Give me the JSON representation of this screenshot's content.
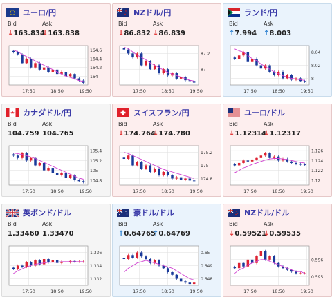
{
  "cards": [
    {
      "pair": "ユーロ/円",
      "flag": "EU",
      "trend": "down",
      "bid": "163.834",
      "ask": "163.838",
      "bid_arrow": "↓",
      "ask_arrow": "↓",
      "labels": {
        "bid": "Bid",
        "ask": "Ask"
      },
      "chart_data": {
        "type": "candlestick",
        "x_ticks": [
          "17:50",
          "18:50",
          "19:50"
        ],
        "y_ticks": [
          "164.6",
          "164.4",
          "164.2",
          "164"
        ],
        "ylim": [
          163.8,
          164.7
        ],
        "close": [
          164.55,
          164.5,
          164.3,
          164.4,
          164.2,
          164.3,
          164.15,
          164.2,
          164.1,
          164.15,
          164.05,
          164.1,
          164.0,
          164.05,
          163.95,
          163.9,
          163.85
        ],
        "ma": [
          164.6,
          164.56,
          164.5,
          164.45,
          164.4,
          164.35,
          164.3,
          164.25,
          164.2,
          164.15,
          164.1,
          164.05,
          164.0,
          163.97,
          163.94,
          163.9,
          163.88
        ]
      }
    },
    {
      "pair": "NZドル/円",
      "flag": "NZ",
      "trend": "down",
      "bid": "86.832",
      "ask": "86.839",
      "bid_arrow": "↓",
      "ask_arrow": "↓",
      "labels": {
        "bid": "Bid",
        "ask": "Ask"
      },
      "chart_data": {
        "type": "candlestick",
        "x_ticks": [
          "17:50",
          "18:50",
          "19:50"
        ],
        "y_ticks": [
          "87.2",
          "87"
        ],
        "ylim": [
          86.8,
          87.3
        ],
        "close": [
          87.25,
          87.2,
          87.15,
          87.2,
          87.05,
          87.1,
          87.0,
          87.05,
          86.95,
          87.0,
          86.92,
          86.95,
          86.88,
          86.9,
          86.86,
          86.85,
          86.83
        ],
        "ma": [
          87.28,
          87.26,
          87.22,
          87.18,
          87.15,
          87.12,
          87.08,
          87.05,
          87.02,
          86.99,
          86.96,
          86.94,
          86.92,
          86.9,
          86.88,
          86.86,
          86.85
        ]
      }
    },
    {
      "pair": "ランド/円",
      "flag": "ZA",
      "trend": "up",
      "bid": "7.994",
      "ask": "8.003",
      "bid_arrow": "↑",
      "ask_arrow": "↑",
      "labels": {
        "bid": "Bid",
        "ask": "Ask"
      },
      "chart_data": {
        "type": "candlestick",
        "x_ticks": [
          "17:50",
          "18:50",
          "19:50"
        ],
        "y_ticks": [
          "8.04",
          "8.02",
          "8"
        ],
        "ylim": [
          7.99,
          8.05
        ],
        "close": [
          8.03,
          8.035,
          8.04,
          8.025,
          8.03,
          8.02,
          8.015,
          8.02,
          8.01,
          8.005,
          8.01,
          8.0,
          8.005,
          7.998,
          8.0,
          7.996,
          7.995
        ],
        "ma": [
          8.045,
          8.042,
          8.04,
          8.035,
          8.03,
          8.027,
          8.022,
          8.018,
          8.014,
          8.01,
          8.007,
          8.004,
          8.002,
          8.0,
          7.999,
          7.998,
          7.997
        ]
      }
    },
    {
      "pair": "カナダドル/円",
      "flag": "CA",
      "trend": "flat",
      "bid": "104.759",
      "ask": "104.765",
      "bid_arrow": "",
      "ask_arrow": "",
      "labels": {
        "bid": "Bid",
        "ask": "Ask"
      },
      "chart_data": {
        "type": "candlestick",
        "x_ticks": [
          "17:50",
          "18:50",
          "19:50"
        ],
        "y_ticks": [
          "105.4",
          "105.2",
          "105",
          "104.8"
        ],
        "ylim": [
          104.7,
          105.5
        ],
        "close": [
          105.3,
          105.25,
          105.35,
          105.2,
          105.25,
          105.1,
          105.15,
          105.0,
          105.05,
          104.95,
          104.9,
          104.95,
          104.85,
          104.9,
          104.8,
          104.78,
          104.76
        ],
        "ma": [
          105.35,
          105.34,
          105.32,
          105.3,
          105.27,
          105.24,
          105.2,
          105.16,
          105.12,
          105.08,
          105.04,
          105.0,
          104.96,
          104.92,
          104.88,
          104.84,
          104.82
        ]
      }
    },
    {
      "pair": "スイスフラン/円",
      "flag": "CH",
      "trend": "down",
      "bid": "174.764",
      "ask": "174.780",
      "bid_arrow": "↓",
      "ask_arrow": "↓",
      "labels": {
        "bid": "Bid",
        "ask": "Ask"
      },
      "chart_data": {
        "type": "candlestick",
        "x_ticks": [
          "17:50",
          "18:50",
          "19:50"
        ],
        "y_ticks": [
          "175.2",
          "175",
          "174.8"
        ],
        "ylim": [
          174.7,
          175.3
        ],
        "close": [
          175.1,
          175.15,
          175.0,
          175.05,
          174.95,
          175.0,
          174.9,
          174.95,
          174.85,
          174.9,
          174.85,
          174.8,
          174.82,
          174.78,
          174.8,
          174.77,
          174.76
        ],
        "ma": [
          175.2,
          175.18,
          175.15,
          175.12,
          175.09,
          175.06,
          175.03,
          175.0,
          174.97,
          174.94,
          174.92,
          174.9,
          174.88,
          174.86,
          174.84,
          174.82,
          174.8
        ]
      }
    },
    {
      "pair": "ユーロ/ドル",
      "flag": "US",
      "trend": "down",
      "bid": "1.12314",
      "ask": "1.12317",
      "bid_arrow": "↓",
      "ask_arrow": "↓",
      "labels": {
        "bid": "Bid",
        "ask": "Ask"
      },
      "chart_data": {
        "type": "candlestick",
        "x_ticks": [
          "17:50",
          "18:50",
          "19:50"
        ],
        "y_ticks": [
          "1.126",
          "1.124",
          "1.122",
          "1.12"
        ],
        "ylim": [
          1.119,
          1.127
        ],
        "close": [
          1.123,
          1.1235,
          1.124,
          1.1238,
          1.1242,
          1.1245,
          1.125,
          1.1255,
          1.1245,
          1.1248,
          1.124,
          1.1243,
          1.1238,
          1.1235,
          1.1233,
          1.1232,
          1.1231
        ],
        "ma": [
          1.1215,
          1.122,
          1.1225,
          1.1228,
          1.1232,
          1.1235,
          1.1238,
          1.1241,
          1.1243,
          1.1244,
          1.1244,
          1.1243,
          1.1242,
          1.124,
          1.1238,
          1.1236,
          1.1235
        ]
      }
    },
    {
      "pair": "英ポンド/ドル",
      "flag": "GB",
      "trend": "flat",
      "bid": "1.33460",
      "ask": "1.33470",
      "bid_arrow": "",
      "ask_arrow": "",
      "labels": {
        "bid": "Bid",
        "ask": "Ask"
      },
      "chart_data": {
        "type": "candlestick",
        "x_ticks": [
          "17:50",
          "18:50",
          "19:50"
        ],
        "y_ticks": [
          "1.336",
          "1.334",
          "1.332"
        ],
        "ylim": [
          1.331,
          1.337
        ],
        "close": [
          1.3335,
          1.334,
          1.3338,
          1.3345,
          1.334,
          1.3348,
          1.3342,
          1.335,
          1.3345,
          1.3348,
          1.3344,
          1.3346,
          1.3345,
          1.3347,
          1.3346,
          1.3346,
          1.3346
        ],
        "ma": [
          1.3328,
          1.3332,
          1.3335,
          1.3338,
          1.334,
          1.3342,
          1.3343,
          1.3344,
          1.3345,
          1.3345,
          1.3345,
          1.3346,
          1.3346,
          1.3346,
          1.3346,
          1.3346,
          1.3346
        ]
      }
    },
    {
      "pair": "豪ドル/ドル",
      "flag": "AU",
      "trend": "up",
      "bid": "0.64765",
      "ask": "0.64769",
      "bid_arrow": "↑",
      "ask_arrow": "↑",
      "labels": {
        "bid": "Bid",
        "ask": "Ask"
      },
      "chart_data": {
        "type": "candlestick",
        "x_ticks": [
          "17:50",
          "18:50",
          "19:50"
        ],
        "y_ticks": [
          "0.65",
          "0.649",
          "0.648"
        ],
        "ylim": [
          0.6475,
          0.6505
        ],
        "close": [
          0.6495,
          0.6498,
          0.6496,
          0.65,
          0.6497,
          0.6495,
          0.6492,
          0.6494,
          0.649,
          0.6488,
          0.6485,
          0.6483,
          0.648,
          0.6478,
          0.6477,
          0.6476,
          0.6477
        ],
        "ma": [
          0.6485,
          0.6488,
          0.649,
          0.6492,
          0.6493,
          0.6494,
          0.6493,
          0.6492,
          0.6491,
          0.649,
          0.6489,
          0.6488,
          0.6486,
          0.6484,
          0.6482,
          0.648,
          0.6479
        ]
      }
    },
    {
      "pair": "NZドル/ドル",
      "flag": "NZ",
      "trend": "down",
      "bid": "0.59521",
      "ask": "0.59535",
      "bid_arrow": "↓",
      "ask_arrow": "↓",
      "labels": {
        "bid": "Bid",
        "ask": "Ask"
      },
      "chart_data": {
        "type": "candlestick",
        "x_ticks": [
          "17:50",
          "18:50",
          "19:50"
        ],
        "y_ticks": [
          "0.596",
          "0.595"
        ],
        "ylim": [
          0.5945,
          0.5968
        ],
        "close": [
          0.5955,
          0.5958,
          0.5956,
          0.596,
          0.5958,
          0.5962,
          0.5965,
          0.596,
          0.5962,
          0.5958,
          0.5956,
          0.5955,
          0.5954,
          0.5953,
          0.5952,
          0.5952,
          0.5952
        ],
        "ma": [
          0.5952,
          0.5954,
          0.5955,
          0.5957,
          0.5958,
          0.5959,
          0.596,
          0.596,
          0.5959,
          0.5958,
          0.5957,
          0.5956,
          0.5955,
          0.5954,
          0.5953,
          0.5953,
          0.5952
        ]
      }
    }
  ]
}
